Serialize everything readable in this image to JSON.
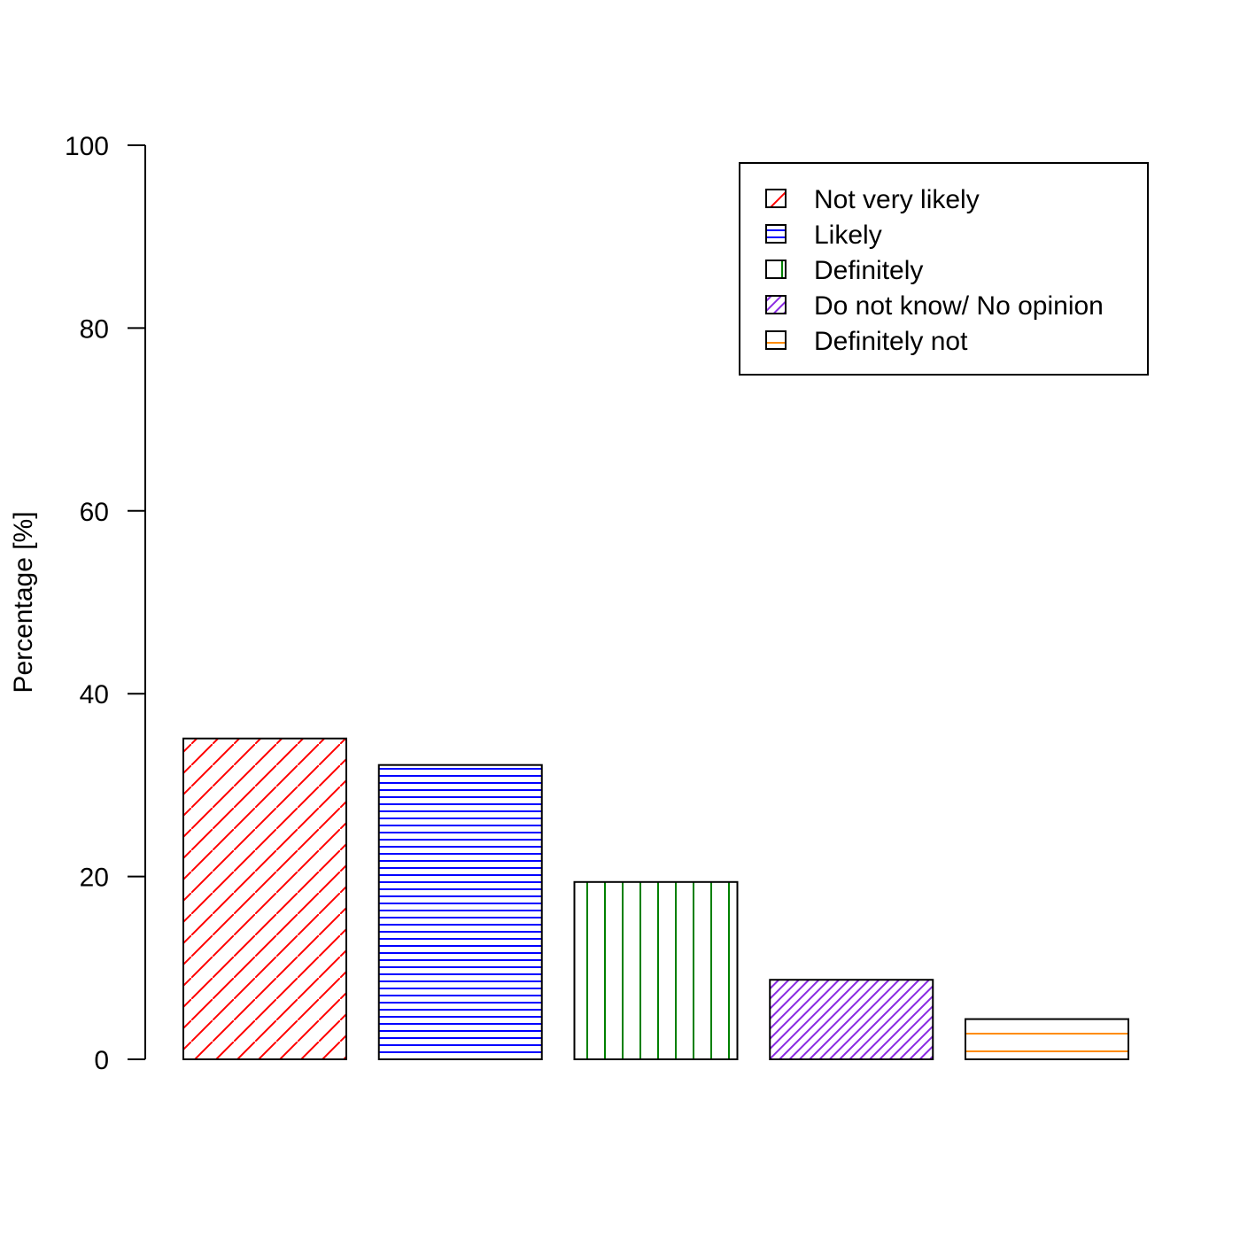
{
  "chart_data": {
    "type": "bar",
    "title": "",
    "xlabel": "",
    "ylabel": "Percentage [%]",
    "ylim": [
      0,
      100
    ],
    "yticks": [
      0,
      20,
      40,
      60,
      80,
      100
    ],
    "grid": false,
    "legend_position": "top-right",
    "categories": [
      "Not very likely",
      "Likely",
      "Definitely",
      "Do not know/ No opinion",
      "Definitely not"
    ],
    "values": [
      35.1,
      32.2,
      19.4,
      8.7,
      4.4
    ],
    "colors": [
      "#ff0000",
      "#0000ff",
      "#008000",
      "#8a2be2",
      "#ff8c00"
    ],
    "fill_patterns": [
      "diagonal-lines",
      "dense-horizontal-lines",
      "vertical-lines",
      "dense-diagonal-lines",
      "horizontal-lines"
    ]
  }
}
